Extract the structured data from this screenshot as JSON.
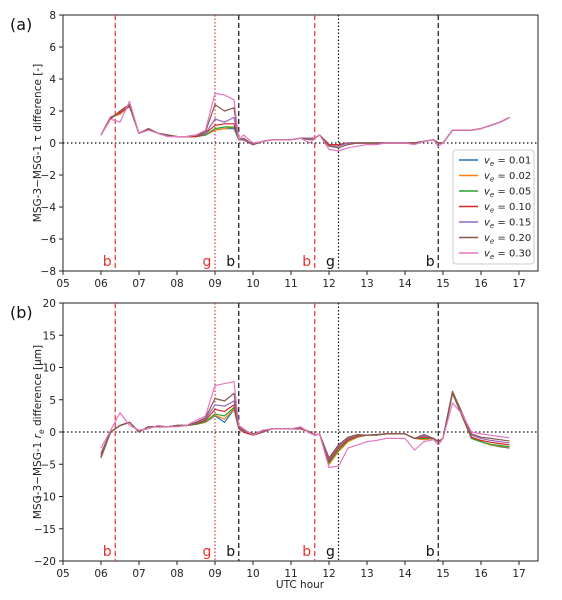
{
  "chart_data": [
    {
      "type": "line",
      "panel": "(a)",
      "xlabel": "",
      "ylabel": "MSG-3−MSG-1 τ difference [-]",
      "xlim": [
        5.0,
        17.5
      ],
      "ylim": [
        -8,
        8
      ],
      "xticks": [
        5,
        6,
        7,
        8,
        9,
        10,
        11,
        12,
        13,
        14,
        15,
        16,
        17
      ],
      "xtick_labels": [
        "05",
        "06",
        "07",
        "08",
        "09",
        "10",
        "11",
        "12",
        "13",
        "14",
        "15",
        "16",
        "17"
      ],
      "yticks": [
        -8,
        -6,
        -4,
        -2,
        0,
        2,
        4,
        6,
        8
      ],
      "ytick_labels": [
        "−8",
        "−6",
        "−4",
        "−2",
        "0",
        "2",
        "4",
        "6",
        "8"
      ],
      "zero_line": true,
      "legend_position": "center-right",
      "vlines": [
        {
          "x": 6.375,
          "style": "dashed",
          "color": "#e8322f",
          "label": "b"
        },
        {
          "x": 9.0,
          "style": "dotted",
          "color": "#e8322f",
          "label": "g"
        },
        {
          "x": 9.625,
          "style": "dashed",
          "color": "#111111",
          "label": "b"
        },
        {
          "x": 11.625,
          "style": "dashed",
          "color": "#e8322f",
          "label": "b"
        },
        {
          "x": 12.25,
          "style": "dotted",
          "color": "#111111",
          "label": "g"
        },
        {
          "x": 14.875,
          "style": "dashed",
          "color": "#111111",
          "label": "b"
        }
      ],
      "x": [
        6.0,
        6.25,
        6.5,
        6.75,
        7.0,
        7.25,
        7.5,
        7.75,
        8.0,
        8.25,
        8.5,
        8.75,
        9.0,
        9.25,
        9.5,
        9.625,
        9.75,
        10.0,
        10.25,
        10.5,
        10.75,
        11.0,
        11.25,
        11.5,
        11.625,
        11.75,
        12.0,
        12.25,
        12.5,
        12.75,
        13.0,
        13.25,
        13.5,
        13.75,
        14.0,
        14.25,
        14.5,
        14.75,
        14.875,
        15.0,
        15.25,
        15.5,
        15.75,
        16.0,
        16.25,
        16.5,
        16.75
      ],
      "series": [
        {
          "name": "v_e = 0.01",
          "color": "#1f77b4",
          "values": [
            0.5,
            1.6,
            1.8,
            2.3,
            0.6,
            0.9,
            0.6,
            0.5,
            0.4,
            0.4,
            0.4,
            0.5,
            0.8,
            0.9,
            0.9,
            0.2,
            0.2,
            -0.1,
            0.1,
            0.2,
            0.2,
            0.2,
            0.3,
            0.3,
            0.3,
            0.5,
            -0.1,
            -0.1,
            0.0,
            0.0,
            0.0,
            0.0,
            0.0,
            0.0,
            0.0,
            0.0,
            0.1,
            0.2,
            0.0,
            0.0,
            0.8,
            0.8,
            0.8,
            0.9,
            1.1,
            1.3,
            1.6
          ]
        },
        {
          "name": "v_e = 0.02",
          "color": "#ff7f0e",
          "values": [
            0.5,
            1.6,
            1.8,
            2.3,
            0.6,
            0.9,
            0.6,
            0.5,
            0.4,
            0.4,
            0.4,
            0.5,
            0.8,
            0.9,
            1.0,
            0.2,
            0.2,
            -0.1,
            0.1,
            0.2,
            0.2,
            0.2,
            0.3,
            0.3,
            0.3,
            0.5,
            -0.1,
            -0.1,
            0.0,
            0.0,
            0.0,
            0.0,
            0.0,
            0.0,
            0.0,
            0.0,
            0.1,
            0.2,
            0.0,
            0.0,
            0.8,
            0.8,
            0.8,
            0.9,
            1.1,
            1.3,
            1.6
          ]
        },
        {
          "name": "v_e = 0.05",
          "color": "#2ca02c",
          "values": [
            0.5,
            1.6,
            1.9,
            2.3,
            0.6,
            0.9,
            0.6,
            0.5,
            0.4,
            0.4,
            0.4,
            0.5,
            0.9,
            1.0,
            1.0,
            0.2,
            0.2,
            -0.1,
            0.1,
            0.2,
            0.2,
            0.2,
            0.3,
            0.3,
            0.3,
            0.5,
            -0.1,
            -0.1,
            0.0,
            0.0,
            0.0,
            0.0,
            0.0,
            0.0,
            0.0,
            0.0,
            0.1,
            0.2,
            0.0,
            0.0,
            0.8,
            0.8,
            0.8,
            0.9,
            1.1,
            1.3,
            1.6
          ]
        },
        {
          "name": "v_e = 0.10",
          "color": "#d62728",
          "values": [
            0.5,
            1.6,
            1.9,
            2.3,
            0.6,
            0.9,
            0.6,
            0.5,
            0.4,
            0.4,
            0.4,
            0.6,
            1.1,
            1.2,
            1.2,
            0.2,
            0.2,
            -0.1,
            0.1,
            0.2,
            0.2,
            0.2,
            0.3,
            0.3,
            0.3,
            0.5,
            -0.1,
            -0.1,
            0.0,
            0.0,
            0.0,
            0.0,
            0.0,
            0.0,
            0.0,
            0.0,
            0.1,
            0.2,
            0.0,
            0.0,
            0.8,
            0.8,
            0.8,
            0.9,
            1.1,
            1.3,
            1.6
          ]
        },
        {
          "name": "v_e = 0.15",
          "color": "#9467bd",
          "values": [
            0.5,
            1.5,
            2.0,
            2.4,
            0.6,
            0.9,
            0.6,
            0.5,
            0.4,
            0.4,
            0.5,
            0.6,
            1.5,
            1.3,
            1.6,
            0.2,
            0.2,
            -0.1,
            0.1,
            0.2,
            0.2,
            0.2,
            0.3,
            0.3,
            0.3,
            0.5,
            -0.2,
            -0.2,
            0.0,
            0.0,
            0.0,
            0.0,
            0.0,
            0.0,
            0.0,
            0.0,
            0.1,
            0.2,
            0.0,
            0.0,
            0.8,
            0.8,
            0.8,
            0.9,
            1.1,
            1.3,
            1.6
          ]
        },
        {
          "name": "v_e = 0.20",
          "color": "#8c564b",
          "values": [
            0.5,
            1.5,
            2.0,
            2.4,
            0.6,
            0.9,
            0.6,
            0.5,
            0.4,
            0.4,
            0.5,
            0.7,
            2.4,
            2.0,
            2.2,
            0.2,
            0.3,
            -0.1,
            0.1,
            0.2,
            0.2,
            0.2,
            0.3,
            0.2,
            0.3,
            0.5,
            -0.2,
            -0.3,
            -0.1,
            0.0,
            0.0,
            0.0,
            0.0,
            0.0,
            0.0,
            0.0,
            0.1,
            0.2,
            0.0,
            0.0,
            0.8,
            0.8,
            0.8,
            0.9,
            1.1,
            1.3,
            1.6
          ]
        },
        {
          "name": "v_e = 0.30",
          "color": "#e377c2",
          "values": [
            0.5,
            1.5,
            1.3,
            2.6,
            0.6,
            0.8,
            0.6,
            0.4,
            0.4,
            0.4,
            0.5,
            0.8,
            3.1,
            3.0,
            2.7,
            0.2,
            0.5,
            0.0,
            0.1,
            0.2,
            0.2,
            0.2,
            0.3,
            0.0,
            0.3,
            0.5,
            -0.4,
            -0.5,
            -0.3,
            -0.2,
            -0.1,
            -0.1,
            0.0,
            0.0,
            0.0,
            -0.1,
            0.1,
            0.2,
            -0.2,
            0.0,
            0.8,
            0.8,
            0.8,
            0.9,
            1.1,
            1.3,
            1.6
          ]
        }
      ]
    },
    {
      "type": "line",
      "panel": "(b)",
      "xlabel": "UTC hour",
      "ylabel": "MSG-3−MSG-1 r_e difference [μm]",
      "xlim": [
        5.0,
        17.5
      ],
      "ylim": [
        -20,
        20
      ],
      "xticks": [
        5,
        6,
        7,
        8,
        9,
        10,
        11,
        12,
        13,
        14,
        15,
        16,
        17
      ],
      "xtick_labels": [
        "05",
        "06",
        "07",
        "08",
        "09",
        "10",
        "11",
        "12",
        "13",
        "14",
        "15",
        "16",
        "17"
      ],
      "yticks": [
        -20,
        -15,
        -10,
        -5,
        0,
        5,
        10,
        15,
        20
      ],
      "ytick_labels": [
        "−20",
        "−15",
        "−10",
        "−5",
        "0",
        "5",
        "10",
        "15",
        "20"
      ],
      "zero_line": true,
      "vlines": [
        {
          "x": 6.375,
          "style": "dashed",
          "color": "#e8322f",
          "label": "b"
        },
        {
          "x": 9.0,
          "style": "dotted",
          "color": "#e8322f",
          "label": "g"
        },
        {
          "x": 9.625,
          "style": "dashed",
          "color": "#111111",
          "label": "b"
        },
        {
          "x": 11.625,
          "style": "dashed",
          "color": "#e8322f",
          "label": "b"
        },
        {
          "x": 12.25,
          "style": "dotted",
          "color": "#111111",
          "label": "g"
        },
        {
          "x": 14.875,
          "style": "dashed",
          "color": "#111111",
          "label": "b"
        }
      ],
      "x": [
        6.0,
        6.25,
        6.5,
        6.75,
        7.0,
        7.25,
        7.5,
        7.75,
        8.0,
        8.25,
        8.5,
        8.75,
        9.0,
        9.25,
        9.5,
        9.625,
        9.75,
        10.0,
        10.25,
        10.5,
        10.75,
        11.0,
        11.25,
        11.5,
        11.625,
        11.75,
        12.0,
        12.25,
        12.5,
        12.75,
        13.0,
        13.25,
        13.5,
        13.75,
        14.0,
        14.25,
        14.5,
        14.75,
        14.875,
        15.0,
        15.25,
        15.5,
        15.75,
        16.0,
        16.25,
        16.5,
        16.75
      ],
      "series": [
        {
          "name": "v_e = 0.01",
          "color": "#1f77b4",
          "values": [
            -4.0,
            0.0,
            1.0,
            1.5,
            0.0,
            0.8,
            0.8,
            0.8,
            1.0,
            1.0,
            1.2,
            1.5,
            2.5,
            1.5,
            3.5,
            0.5,
            0.0,
            -0.5,
            0.0,
            0.5,
            0.5,
            0.5,
            0.5,
            0.0,
            -0.5,
            -0.3,
            -5.0,
            -3.0,
            -1.5,
            -0.8,
            -0.5,
            -0.5,
            -0.3,
            -0.3,
            -0.3,
            -1.0,
            -1.2,
            -1.0,
            -1.5,
            -1.0,
            6.0,
            2.5,
            -1.0,
            -1.5,
            -2.0,
            -2.3,
            -2.5
          ]
        },
        {
          "name": "v_e = 0.02",
          "color": "#ff7f0e",
          "values": [
            -4.0,
            0.0,
            1.0,
            1.5,
            0.0,
            0.8,
            0.8,
            0.8,
            1.0,
            1.0,
            1.2,
            1.5,
            2.6,
            2.0,
            3.6,
            0.5,
            0.0,
            -0.5,
            0.0,
            0.5,
            0.5,
            0.5,
            0.5,
            0.0,
            -0.5,
            -0.3,
            -5.0,
            -3.0,
            -1.5,
            -0.8,
            -0.5,
            -0.5,
            -0.3,
            -0.3,
            -0.3,
            -1.0,
            -1.2,
            -1.0,
            -1.5,
            -1.0,
            6.0,
            2.5,
            -1.0,
            -1.5,
            -2.0,
            -2.2,
            -2.4
          ]
        },
        {
          "name": "v_e = 0.05",
          "color": "#2ca02c",
          "values": [
            -4.0,
            0.0,
            1.0,
            1.5,
            0.0,
            0.8,
            0.8,
            0.8,
            1.0,
            1.0,
            1.2,
            1.6,
            2.8,
            2.5,
            3.8,
            0.5,
            0.0,
            -0.5,
            0.0,
            0.5,
            0.5,
            0.5,
            0.5,
            0.0,
            -0.5,
            -0.3,
            -4.8,
            -2.8,
            -1.3,
            -0.7,
            -0.5,
            -0.5,
            -0.3,
            -0.3,
            -0.3,
            -1.0,
            -1.0,
            -1.0,
            -1.5,
            -1.0,
            6.0,
            2.5,
            -1.0,
            -1.5,
            -1.9,
            -2.1,
            -2.3
          ]
        },
        {
          "name": "v_e = 0.10",
          "color": "#d62728",
          "values": [
            -3.8,
            0.0,
            1.0,
            1.5,
            0.0,
            0.8,
            0.8,
            0.8,
            1.0,
            1.0,
            1.3,
            1.8,
            3.5,
            3.2,
            4.2,
            0.6,
            0.0,
            -0.5,
            0.0,
            0.5,
            0.5,
            0.5,
            0.5,
            0.0,
            -0.5,
            -0.3,
            -4.5,
            -2.5,
            -1.2,
            -0.6,
            -0.5,
            -0.4,
            -0.3,
            -0.3,
            -0.3,
            -1.0,
            -0.8,
            -1.0,
            -1.5,
            -1.0,
            6.2,
            2.6,
            -0.8,
            -1.3,
            -1.6,
            -1.8,
            -2.0
          ]
        },
        {
          "name": "v_e = 0.15",
          "color": "#9467bd",
          "values": [
            -3.5,
            0.0,
            1.0,
            1.5,
            0.0,
            0.8,
            0.8,
            0.8,
            1.0,
            1.0,
            1.4,
            2.0,
            4.2,
            4.0,
            4.8,
            0.7,
            0.2,
            -0.4,
            0.1,
            0.5,
            0.5,
            0.5,
            0.6,
            0.0,
            -0.5,
            -0.3,
            -4.2,
            -2.2,
            -1.0,
            -0.5,
            -0.5,
            -0.4,
            -0.3,
            -0.3,
            -0.3,
            -1.0,
            -0.6,
            -1.0,
            -1.5,
            -1.0,
            6.3,
            2.8,
            -0.5,
            -1.0,
            -1.3,
            -1.5,
            -1.7
          ]
        },
        {
          "name": "v_e = 0.20",
          "color": "#8c564b",
          "values": [
            -3.3,
            0.0,
            1.0,
            1.5,
            0.0,
            0.8,
            0.8,
            0.8,
            1.0,
            1.0,
            1.5,
            2.2,
            5.2,
            4.8,
            6.0,
            0.8,
            0.3,
            -0.3,
            0.2,
            0.5,
            0.5,
            0.5,
            0.7,
            0.0,
            -0.5,
            -0.3,
            -4.0,
            -2.0,
            -0.8,
            -0.4,
            -0.5,
            -0.4,
            -0.3,
            -0.3,
            -0.3,
            -1.0,
            -0.4,
            -1.0,
            -1.5,
            -1.0,
            6.3,
            3.0,
            -0.3,
            -0.8,
            -1.0,
            -1.2,
            -1.4
          ]
        },
        {
          "name": "v_e = 0.30",
          "color": "#e377c2",
          "values": [
            -2.5,
            0.2,
            3.0,
            1.0,
            0.3,
            0.5,
            1.0,
            0.8,
            0.8,
            1.0,
            1.8,
            2.5,
            7.2,
            7.5,
            7.8,
            1.0,
            0.5,
            -0.5,
            0.3,
            0.5,
            0.5,
            0.5,
            0.8,
            -0.2,
            -0.5,
            -0.3,
            -5.5,
            -5.3,
            -2.5,
            -2.0,
            -1.5,
            -1.3,
            -1.0,
            -1.0,
            -1.0,
            -2.8,
            -1.5,
            -1.2,
            -2.0,
            -1.0,
            4.5,
            2.8,
            0.0,
            -0.3,
            -0.5,
            -0.7,
            -0.9
          ]
        }
      ]
    }
  ],
  "legend": [
    {
      "label": "v",
      "sub": "e",
      "value": " = 0.01",
      "color": "#1f77b4"
    },
    {
      "label": "v",
      "sub": "e",
      "value": " = 0.02",
      "color": "#ff7f0e"
    },
    {
      "label": "v",
      "sub": "e",
      "value": " = 0.05",
      "color": "#2ca02c"
    },
    {
      "label": "v",
      "sub": "e",
      "value": " = 0.10",
      "color": "#d62728"
    },
    {
      "label": "v",
      "sub": "e",
      "value": " = 0.15",
      "color": "#9467bd"
    },
    {
      "label": "v",
      "sub": "e",
      "value": " = 0.20",
      "color": "#8c564b"
    },
    {
      "label": "v",
      "sub": "e",
      "value": " = 0.30",
      "color": "#e377c2"
    }
  ],
  "panel_b_ylabel_parts": {
    "pre": "MSG-3−MSG-1 ",
    "var": "r",
    "sub": "e",
    "post": " difference [μm]"
  }
}
